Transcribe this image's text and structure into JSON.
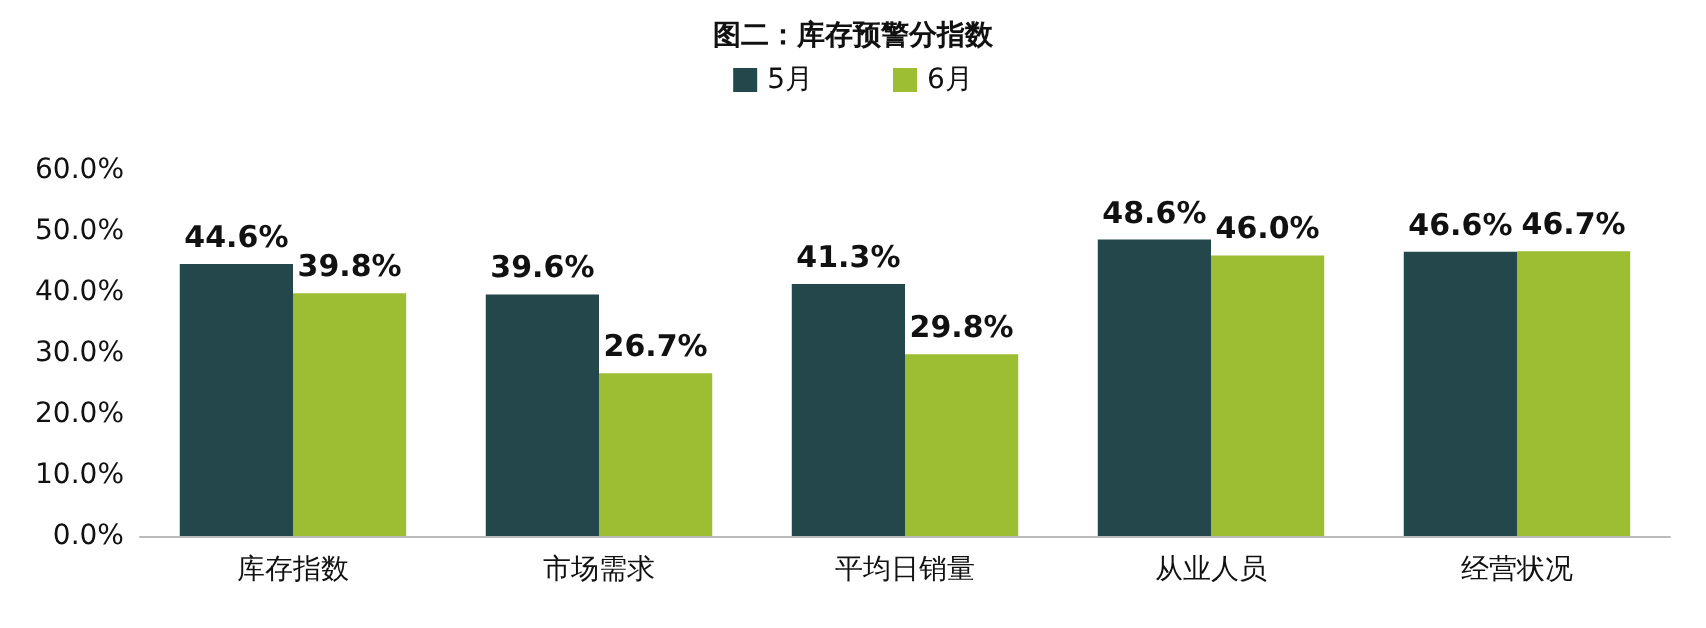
{
  "chart_data": {
    "type": "bar",
    "title": "图二：库存预警分指数",
    "categories": [
      "库存指数",
      "市场需求",
      "平均日销量",
      "从业人员",
      "经营状况"
    ],
    "series": [
      {
        "name": "5月",
        "color": "#23474a",
        "values": [
          44.6,
          39.6,
          41.3,
          48.6,
          46.6
        ],
        "value_labels": [
          "44.6%",
          "39.6%",
          "41.3%",
          "48.6%",
          "46.6%"
        ]
      },
      {
        "name": "6月",
        "color": "#9dbd32",
        "values": [
          39.8,
          26.7,
          29.8,
          46.0,
          46.7
        ],
        "value_labels": [
          "39.8%",
          "26.7%",
          "29.8%",
          "46.0%",
          "46.7%"
        ]
      }
    ],
    "ylim": [
      0,
      60
    ],
    "yticks": [
      {
        "value": 0,
        "label": "0.0%"
      },
      {
        "value": 10,
        "label": "10.0%"
      },
      {
        "value": 20,
        "label": "20.0%"
      },
      {
        "value": 30,
        "label": "30.0%"
      },
      {
        "value": 40,
        "label": "40.0%"
      },
      {
        "value": 50,
        "label": "50.0%"
      },
      {
        "value": 60,
        "label": "60.0%"
      }
    ],
    "grid": false,
    "legend": "top"
  }
}
